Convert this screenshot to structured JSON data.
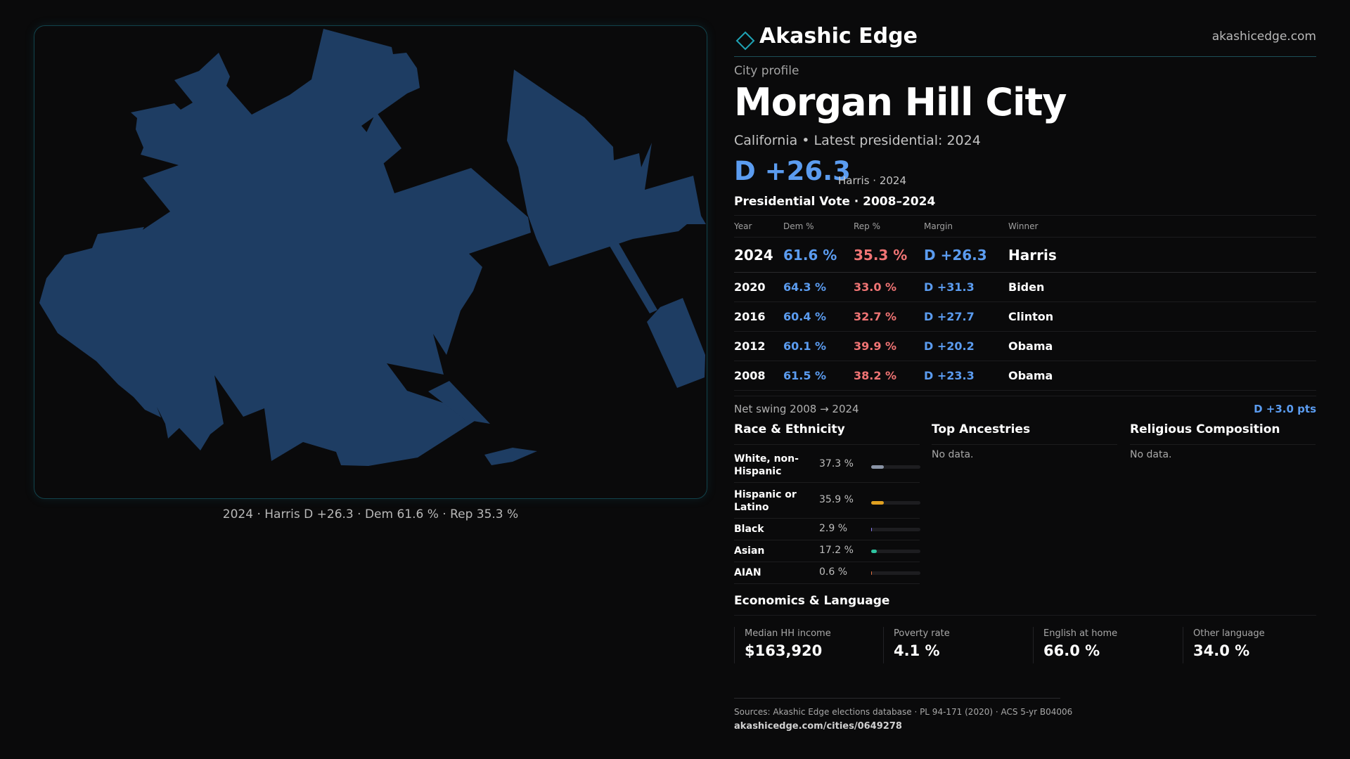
{
  "brand": {
    "name": "Akashic Edge",
    "url": "akashicedge.com"
  },
  "map": {
    "caption": "2024 · Harris D +26.3 · Dem 61.6 % · Rep 35.3 %",
    "fill_color": "#1e3d63",
    "border_color": "#12434c"
  },
  "profile": {
    "eyebrow": "City profile",
    "title": "Morgan Hill City",
    "subtitle": "California • Latest presidential: 2024",
    "headline_margin": "D +26.3",
    "headline_note": "Harris · 2024"
  },
  "vote": {
    "section_title": "Presidential Vote · 2008–2024",
    "columns": [
      "Year",
      "Dem %",
      "Rep %",
      "Margin",
      "Winner"
    ],
    "rows": [
      {
        "year": "2024",
        "dem": "61.6 %",
        "rep": "35.3 %",
        "margin": "D +26.3",
        "winner": "Harris"
      },
      {
        "year": "2020",
        "dem": "64.3 %",
        "rep": "33.0 %",
        "margin": "D +31.3",
        "winner": "Biden"
      },
      {
        "year": "2016",
        "dem": "60.4 %",
        "rep": "32.7 %",
        "margin": "D +27.7",
        "winner": "Clinton"
      },
      {
        "year": "2012",
        "dem": "60.1 %",
        "rep": "39.9 %",
        "margin": "D +20.2",
        "winner": "Obama"
      },
      {
        "year": "2008",
        "dem": "61.5 %",
        "rep": "38.2 %",
        "margin": "D +23.3",
        "winner": "Obama"
      }
    ],
    "swing_label": "Net swing 2008 → 2024",
    "swing_value": "D +3.0 pts"
  },
  "race": {
    "title": "Race & Ethnicity",
    "items": [
      {
        "name": "White, non-Hispanic",
        "pct": "37.3 %",
        "value": 37.3,
        "color": "#8a94a6"
      },
      {
        "name": "Hispanic or Latino",
        "pct": "35.9 %",
        "value": 35.9,
        "color": "#e0a020"
      },
      {
        "name": "Black",
        "pct": "2.9 %",
        "value": 2.9,
        "color": "#8b7cf0"
      },
      {
        "name": "Asian",
        "pct": "17.2 %",
        "value": 17.2,
        "color": "#2ec4a0"
      },
      {
        "name": "AIAN",
        "pct": "0.6 %",
        "value": 0.6,
        "color": "#e07040"
      }
    ]
  },
  "ancestries": {
    "title": "Top Ancestries",
    "empty": "No data."
  },
  "religion": {
    "title": "Religious Composition",
    "empty": "No data."
  },
  "economics": {
    "title": "Economics & Language",
    "stats": [
      {
        "label": "Median HH income",
        "value": "$163,920"
      },
      {
        "label": "Poverty rate",
        "value": "4.1 %"
      },
      {
        "label": "English at home",
        "value": "66.0 %"
      },
      {
        "label": "Other language",
        "value": "34.0 %"
      }
    ]
  },
  "footer": {
    "sources": "Sources: Akashic Edge elections database · PL 94-171 (2020) · ACS 5-yr B04006",
    "url": "akashicedge.com/cities/0649278"
  }
}
